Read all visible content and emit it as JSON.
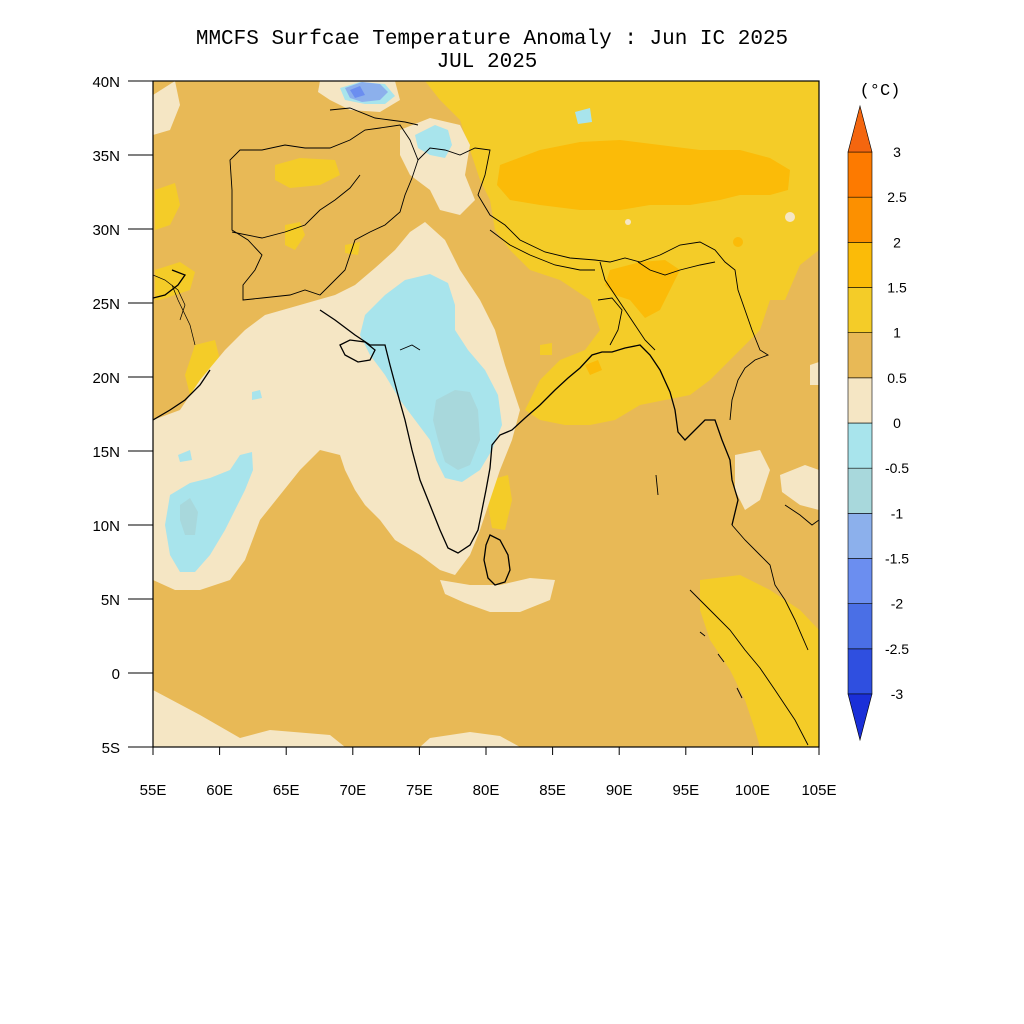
{
  "title": {
    "line1": "MMCFS Surfcae Temperature Anomaly : Jun IC 2025",
    "line2": "JUL 2025"
  },
  "map": {
    "lon_range": [
      55,
      105
    ],
    "lat_range": [
      -5,
      40
    ],
    "lon_ticks": [
      55,
      60,
      65,
      70,
      75,
      80,
      85,
      90,
      95,
      100,
      105
    ],
    "lon_tick_labels": [
      "55E",
      "60E",
      "65E",
      "70E",
      "75E",
      "80E",
      "85E",
      "90E",
      "95E",
      "100E",
      "105E"
    ],
    "lat_ticks": [
      40,
      35,
      30,
      25,
      20,
      15,
      10,
      5,
      0,
      -5
    ],
    "lat_tick_labels": [
      "40N",
      "35N",
      "30N",
      "25N",
      "20N",
      "15N",
      "10N",
      "5N",
      "0",
      "5S"
    ],
    "background_class": "0.5 to 1"
  },
  "colorbar": {
    "unit": "(°C)",
    "levels": [
      -3,
      -2.5,
      -2,
      -1.5,
      -1,
      -0.5,
      0,
      0.5,
      1,
      1.5,
      2,
      2.5,
      3
    ],
    "level_labels": [
      "-3",
      "-2.5",
      "-2",
      "-1.5",
      "-1",
      "-0.5",
      "0",
      "0.5",
      "1",
      "1.5",
      "2",
      "2.5",
      "3"
    ],
    "colors": [
      "#1a2fd8",
      "#2f4fe0",
      "#4a6fe6",
      "#6b8ef0",
      "#8cb0ec",
      "#a8d8dc",
      "#a8e4ec",
      "#f5e6c4",
      "#e8b956",
      "#f4cc28",
      "#fbbb08",
      "#fc9000",
      "#fd7a00",
      "#f4660f"
    ]
  }
}
